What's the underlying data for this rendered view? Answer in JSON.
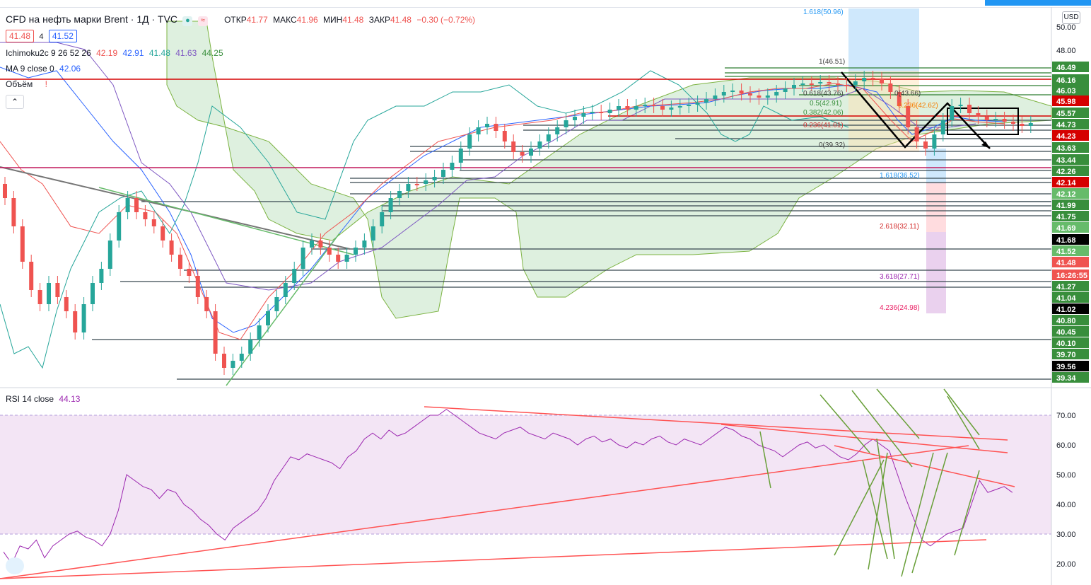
{
  "header": {
    "symbol": "CFD на нефть марки Brent · 1Д · TVC",
    "open_label": "ОТКР",
    "open": "41.77",
    "high_label": "МАКС",
    "high": "41.96",
    "low_label": "МИН",
    "low": "41.48",
    "close_label": "ЗАКР",
    "close": "41.48",
    "change": "−0.30 (−0.72%)",
    "bid": "41.48",
    "spread": "4",
    "ask": "41.52",
    "currency": "USD"
  },
  "ichimoku": {
    "label": "Ichimoku2c 9 26 52 26",
    "v1": "42.19",
    "v2": "42.91",
    "v3": "41.48",
    "v4": "41.63",
    "v5": "44.25"
  },
  "ma": {
    "label": "MA 9 close 0",
    "value": "42.06"
  },
  "volume": {
    "label": "Объём"
  },
  "rsi": {
    "label": "RSI 14 close",
    "value": "44.13"
  },
  "colors": {
    "up": "#26a69a",
    "down": "#ef5350",
    "cloud": "#c8e6c9",
    "rsi_band": "#f3e5f5"
  },
  "chart_data": {
    "type": "candlestick",
    "price_axis": {
      "ticks": [
        "50.00",
        "48.00",
        "46.49",
        "46.16",
        "46.03",
        "45.98",
        "45.57",
        "44.73",
        "44.23",
        "43.63",
        "43.44",
        "42.26",
        "42.14",
        "42.12",
        "41.99",
        "41.75",
        "41.69",
        "41.68",
        "41.52",
        "41.48",
        "16:26:55",
        "41.27",
        "41.04",
        "41.02",
        "40.80",
        "40.45",
        "40.10",
        "39.70",
        "39.56",
        "39.34"
      ]
    },
    "rsi_axis": {
      "ticks": [
        "70.00",
        "60.00",
        "50.00",
        "40.00",
        "30.00",
        "20.00"
      ]
    },
    "fib_labels": [
      "1.618(50.96)",
      "1(46.51)",
      "0.618(43.76)",
      "0.5(42.91)",
      "0.382(42.06)",
      "0.236(41.01)",
      "0(39.32)",
      "0(43.66)",
      "0.236(42.62)",
      "1.618(36.52)",
      "2.618(32.11)",
      "3.618(27.71)",
      "4.236(24.98)"
    ],
    "rsi_series": [
      24,
      20,
      26,
      25,
      28,
      22,
      26,
      28,
      30,
      31,
      29,
      28,
      26,
      30,
      38,
      50,
      48,
      46,
      45,
      42,
      45,
      44,
      40,
      38,
      35,
      33,
      30,
      28,
      32,
      34,
      36,
      38,
      42,
      48,
      52,
      56,
      55,
      57,
      56,
      55,
      54,
      52,
      56,
      58,
      62,
      64,
      62,
      65,
      63,
      64,
      66,
      68,
      70,
      70,
      72,
      70,
      68,
      66,
      64,
      63,
      62,
      64,
      65,
      66,
      64,
      63,
      62,
      64,
      63,
      62,
      60,
      62,
      63,
      61,
      62,
      60,
      59,
      61,
      60,
      62,
      63,
      61,
      60,
      62,
      61,
      60,
      62,
      64,
      66,
      65,
      63,
      62,
      60,
      59,
      58,
      56,
      58,
      60,
      61,
      59,
      60,
      58,
      56,
      55,
      57,
      60,
      62,
      60,
      58,
      50,
      42,
      35,
      28,
      26,
      28,
      30,
      31,
      32,
      40,
      48,
      44,
      45,
      46,
      44
    ]
  }
}
